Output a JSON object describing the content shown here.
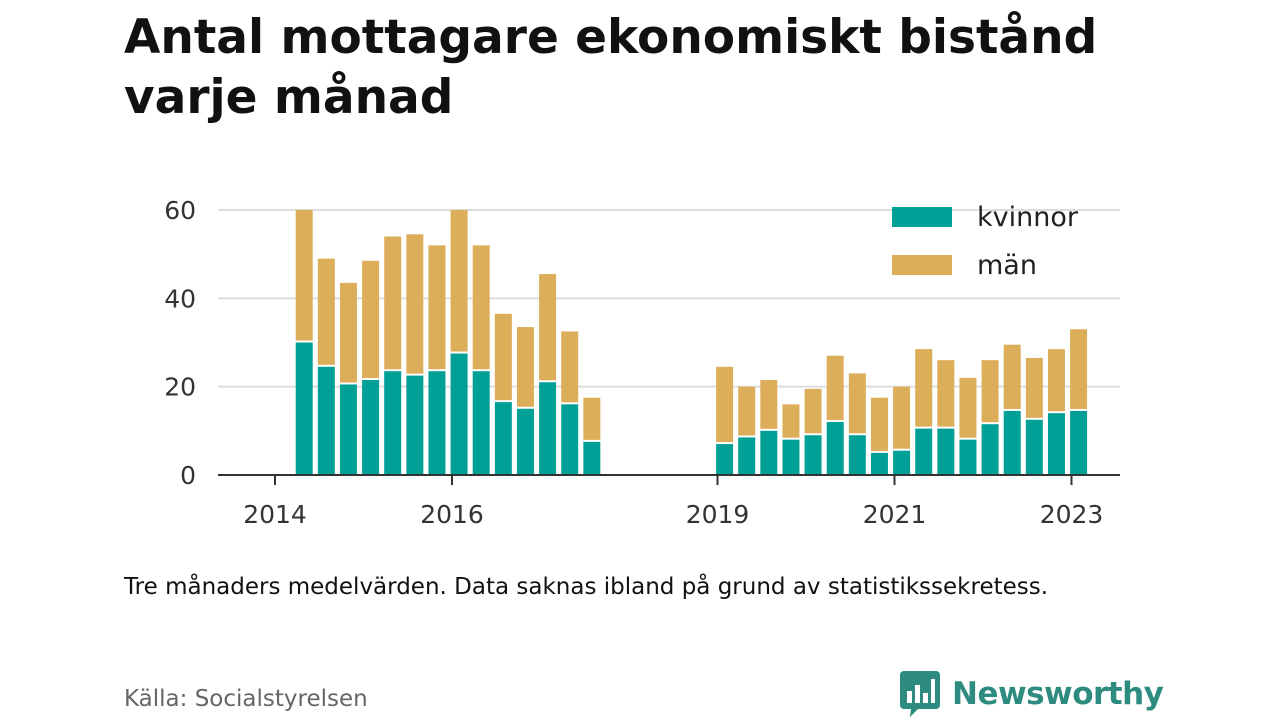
{
  "title": "Antal mottagare ekonomiskt bistånd varje månad",
  "note": "Tre månaders medelvärden. Data saknas ibland på grund av statistikssekretess.",
  "source": "Källa: Socialstyrelsen",
  "brand": {
    "name": "Newsworthy",
    "color": "#2e8b7f",
    "icon": "bar-chart-bubble-icon"
  },
  "chart_data": {
    "type": "bar",
    "stacked": true,
    "title": "Antal mottagare ekonomiskt bistånd varje månad",
    "xlabel": "",
    "ylabel": "",
    "ylim": [
      0,
      60
    ],
    "yticks": [
      0,
      20,
      40,
      60
    ],
    "xticks": [
      "2014",
      "2016",
      "2019",
      "2021",
      "2023"
    ],
    "grid": true,
    "legend_position": "top-right",
    "periods": [
      "2014-Q2",
      "2014-Q3",
      "2014-Q4",
      "2015-Q1",
      "2015-Q2",
      "2015-Q3",
      "2015-Q4",
      "2016-Q1",
      "2016-Q2",
      "2016-Q3",
      "2016-Q4",
      "2017-Q1",
      "2017-Q2",
      "2017-Q3",
      "2019-Q1",
      "2019-Q2",
      "2019-Q3",
      "2019-Q4",
      "2020-Q1",
      "2020-Q2",
      "2020-Q3",
      "2020-Q4",
      "2021-Q1",
      "2021-Q2",
      "2021-Q3",
      "2021-Q4",
      "2022-Q1",
      "2022-Q2",
      "2022-Q3",
      "2022-Q4",
      "2023-Q1"
    ],
    "x": [
      2014.33,
      2014.58,
      2014.83,
      2015.08,
      2015.33,
      2015.58,
      2015.83,
      2016.08,
      2016.33,
      2016.58,
      2016.83,
      2017.08,
      2017.33,
      2017.58,
      2019.08,
      2019.33,
      2019.58,
      2019.83,
      2020.08,
      2020.33,
      2020.58,
      2020.83,
      2021.08,
      2021.33,
      2021.58,
      2021.83,
      2022.08,
      2022.33,
      2022.58,
      2022.83,
      2023.08
    ],
    "series": [
      {
        "name": "kvinnor",
        "color": "#00a096",
        "values": [
          30,
          24.5,
          20.5,
          21.5,
          23.5,
          22.5,
          23.5,
          27.5,
          23.5,
          16.5,
          15,
          21,
          16,
          7.5,
          7,
          8.5,
          10,
          8,
          9,
          12,
          9,
          5,
          5.5,
          10.5,
          10.5,
          8,
          11.5,
          14.5,
          12.5,
          14,
          14.5
        ]
      },
      {
        "name": "män",
        "color": "#dcae5a",
        "values": [
          30,
          24.5,
          23,
          27,
          30.5,
          32,
          28.5,
          32.5,
          28.5,
          20,
          18.5,
          24.5,
          16.5,
          10,
          17.5,
          11.5,
          11.5,
          8,
          10.5,
          15,
          14,
          12.5,
          14.5,
          18,
          15.5,
          14,
          14.5,
          15,
          14,
          14.5,
          18.5
        ]
      }
    ]
  }
}
